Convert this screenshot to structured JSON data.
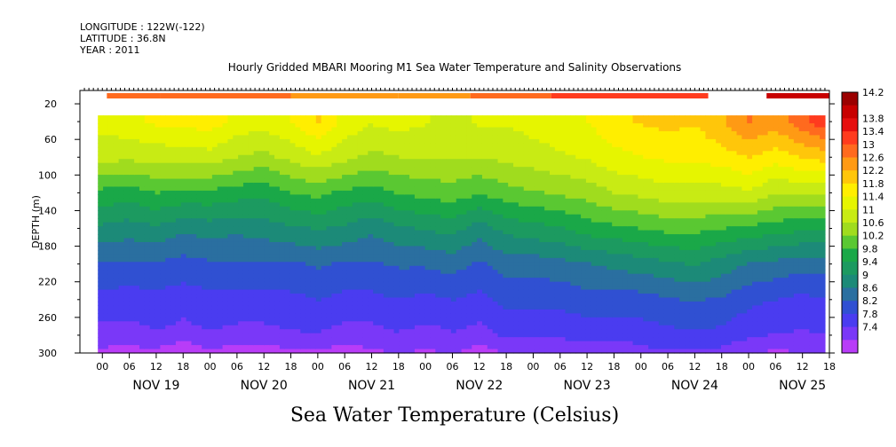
{
  "header": {
    "longitude": "LONGITUDE : 122W(-122)",
    "latitude": "LATITUDE : 36.8N",
    "year": "YEAR : 2011"
  },
  "chart_data": {
    "type": "heatmap",
    "title": "Hourly Gridded MBARI Mooring M1 Sea Water Temperature and Salinity Observations",
    "caption": "Sea Water Temperature (Celsius)",
    "ylabel": "DEPTH (m)",
    "ylim": [
      300,
      5
    ],
    "y_ticks": [
      20,
      60,
      100,
      140,
      180,
      220,
      260,
      300
    ],
    "xlim": [
      -5,
      162
    ],
    "x_hour_labels": [
      "00",
      "06",
      "12",
      "18",
      "00",
      "06",
      "12",
      "18",
      "00",
      "06",
      "12",
      "18",
      "00",
      "06",
      "12",
      "18",
      "00",
      "06",
      "12",
      "18",
      "00",
      "06",
      "12",
      "18",
      "00",
      "06",
      "12",
      "18"
    ],
    "x_day_labels": [
      "NOV 19",
      "NOV 20",
      "NOV 21",
      "NOV 22",
      "NOV 23",
      "NOV 24",
      "NOV 25"
    ],
    "colorbar_levels": [
      "14.2",
      "13.8",
      "13.4",
      "13",
      "12.6",
      "12.2",
      "11.8",
      "11.4",
      "11",
      "10.6",
      "10.2",
      "9.8",
      "9.4",
      "9",
      "8.6",
      "8.2",
      "7.8",
      "7.4"
    ],
    "colorbar_colors": [
      "#9b0000",
      "#c80000",
      "#e60f0f",
      "#ff3b1e",
      "#ff6a1e",
      "#ff9a14",
      "#ffc60a",
      "#ffee00",
      "#e6f500",
      "#c8eb14",
      "#a0dc1e",
      "#5ac832",
      "#1aa848",
      "#1c9a60",
      "#1c8a78",
      "#2a6fa0",
      "#3050d2",
      "#4a3cf0",
      "#7a38f8",
      "#b83cf8"
    ],
    "surface_band": {
      "depth_range": [
        8,
        14
      ],
      "segments": [
        {
          "x": [
            1,
            13
          ],
          "temp": 12.7
        },
        {
          "x": [
            13,
            42
          ],
          "temp": 12.6
        },
        {
          "x": [
            42,
            66
          ],
          "temp": 12.5
        },
        {
          "x": [
            66,
            82
          ],
          "temp": 12.3
        },
        {
          "x": [
            82,
            100
          ],
          "temp": 12.8
        },
        {
          "x": [
            100,
            135
          ],
          "temp": 13.2
        },
        {
          "x": [
            148,
            162
          ],
          "temp": 13.9
        }
      ]
    },
    "profile_top": 33,
    "columns": [
      {
        "x": -1,
        "d": [
          11.3,
          10.9,
          10.0,
          9.3,
          8.6,
          8.2,
          7.8,
          7.5
        ]
      },
      {
        "x": 6,
        "d": [
          11.4,
          10.9,
          9.9,
          9.2,
          8.6,
          8.1,
          7.8,
          7.4
        ]
      },
      {
        "x": 12,
        "d": [
          11.6,
          10.9,
          10.1,
          9.3,
          8.6,
          8.2,
          7.9,
          7.5
        ]
      },
      {
        "x": 18,
        "d": [
          11.6,
          11.0,
          10.0,
          9.1,
          8.5,
          8.1,
          7.8,
          7.2
        ]
      },
      {
        "x": 24,
        "d": [
          11.7,
          11.0,
          10.0,
          9.2,
          8.6,
          8.2,
          7.9,
          7.5
        ]
      },
      {
        "x": 30,
        "d": [
          11.4,
          10.8,
          9.9,
          9.1,
          8.6,
          8.2,
          7.8,
          7.4
        ]
      },
      {
        "x": 36,
        "d": [
          11.3,
          10.7,
          9.8,
          9.2,
          8.6,
          8.2,
          7.8,
          7.3
        ]
      },
      {
        "x": 42,
        "d": [
          11.5,
          10.9,
          10.1,
          9.3,
          8.6,
          8.2,
          7.9,
          7.5
        ]
      },
      {
        "x": 48,
        "d": [
          11.9,
          11.1,
          10.2,
          9.4,
          8.7,
          8.3,
          7.9,
          7.5
        ]
      },
      {
        "x": 54,
        "d": [
          11.4,
          10.9,
          10.0,
          9.3,
          8.6,
          8.2,
          7.8,
          7.4
        ]
      },
      {
        "x": 60,
        "d": [
          11.2,
          10.7,
          9.9,
          9.1,
          8.6,
          8.2,
          7.8,
          7.5
        ]
      },
      {
        "x": 66,
        "d": [
          11.3,
          10.8,
          10.1,
          9.3,
          8.7,
          8.3,
          7.9,
          7.6
        ]
      },
      {
        "x": 72,
        "d": [
          11.2,
          10.8,
          10.2,
          9.4,
          8.7,
          8.2,
          7.8,
          7.5
        ]
      },
      {
        "x": 78,
        "d": [
          11.0,
          10.8,
          10.3,
          9.5,
          8.8,
          8.3,
          7.9,
          7.6
        ]
      },
      {
        "x": 84,
        "d": [
          11.2,
          10.8,
          10.1,
          9.2,
          8.6,
          8.2,
          7.8,
          7.4
        ]
      },
      {
        "x": 90,
        "d": [
          11.2,
          10.9,
          10.3,
          9.5,
          8.8,
          8.4,
          8.0,
          7.6
        ]
      },
      {
        "x": 96,
        "d": [
          11.3,
          11.0,
          10.4,
          9.6,
          8.8,
          8.4,
          8.0,
          7.6
        ]
      },
      {
        "x": 102,
        "d": [
          11.4,
          11.1,
          10.5,
          9.7,
          8.9,
          8.4,
          8.0,
          7.6
        ]
      },
      {
        "x": 108,
        "d": [
          11.5,
          11.2,
          10.6,
          9.9,
          9.0,
          8.5,
          8.1,
          7.7
        ]
      },
      {
        "x": 114,
        "d": [
          11.8,
          11.4,
          10.8,
          10.0,
          9.1,
          8.5,
          8.1,
          7.6
        ]
      },
      {
        "x": 120,
        "d": [
          11.9,
          11.5,
          10.9,
          10.1,
          9.2,
          8.5,
          8.1,
          7.8
        ]
      },
      {
        "x": 126,
        "d": [
          12.0,
          11.6,
          11.0,
          10.2,
          9.3,
          8.6,
          8.2,
          7.9
        ]
      },
      {
        "x": 132,
        "d": [
          11.9,
          11.6,
          11.0,
          10.2,
          9.4,
          8.7,
          8.2,
          7.9
        ]
      },
      {
        "x": 138,
        "d": [
          12.2,
          11.7,
          11.0,
          10.1,
          9.2,
          8.6,
          8.2,
          7.8
        ]
      },
      {
        "x": 144,
        "d": [
          12.6,
          11.9,
          11.1,
          10.0,
          9.0,
          8.4,
          8.0,
          7.6
        ]
      },
      {
        "x": 150,
        "d": [
          12.4,
          11.7,
          10.8,
          9.9,
          8.9,
          8.3,
          7.9,
          7.5
        ]
      },
      {
        "x": 156,
        "d": [
          12.8,
          11.9,
          10.9,
          9.8,
          8.8,
          8.2,
          7.9,
          7.6
        ]
      },
      {
        "x": 161,
        "d": [
          13.2,
          12.0,
          10.9,
          9.8,
          8.8,
          8.3,
          7.9,
          7.6
        ]
      }
    ],
    "profile_depths": [
      40,
      80,
      120,
      160,
      200,
      240,
      280,
      300
    ]
  }
}
